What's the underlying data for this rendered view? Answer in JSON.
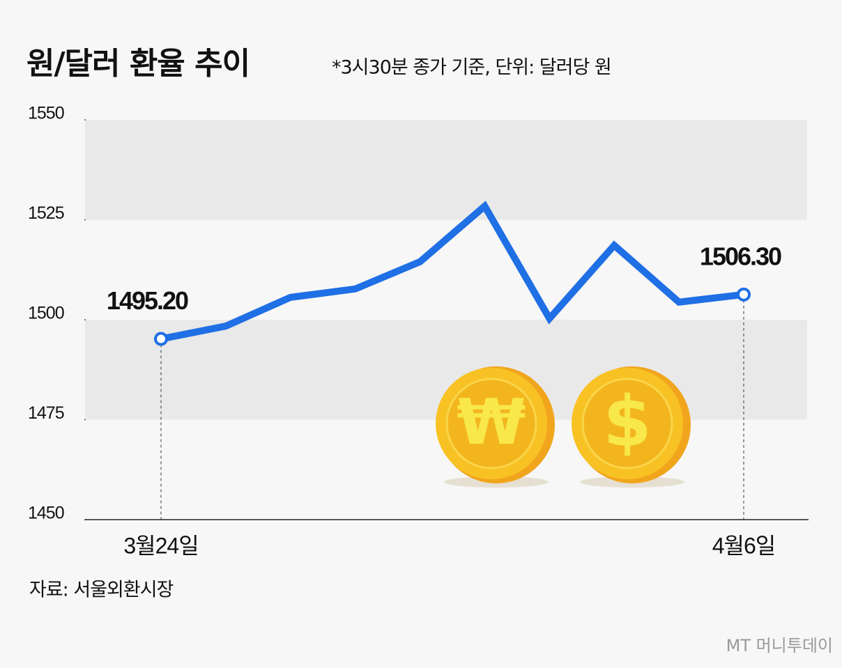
{
  "chart_data": {
    "type": "line",
    "title": "원/달러 환율 추이",
    "subtitle": "*3시30분 종가 기준, 단위: 달러당 원",
    "source": "자료: 서울외환시장",
    "watermark": "MT 머니투데이",
    "coin_symbols": [
      "₩",
      "$"
    ],
    "categories": [
      "3월24일",
      null,
      null,
      null,
      null,
      null,
      null,
      null,
      null,
      "4월6일"
    ],
    "series": [
      {
        "name": "원/달러 환율",
        "color": "#1f6fe5",
        "values": [
          1495.2,
          1498.4,
          1505.6,
          1507.7,
          1514.5,
          1528.4,
          1500.3,
          1518.6,
          1504.4,
          1506.3
        ],
        "value_labels": [
          "1495.20",
          null,
          null,
          null,
          null,
          null,
          null,
          null,
          null,
          "1506.30"
        ]
      }
    ],
    "ylim": [
      1450,
      1550
    ],
    "yticks": [
      1450,
      1475,
      1500,
      1525,
      1550
    ],
    "bands": [
      [
        1475,
        1500
      ],
      [
        1525,
        1550
      ]
    ],
    "band_color": "#e9e9e9"
  }
}
